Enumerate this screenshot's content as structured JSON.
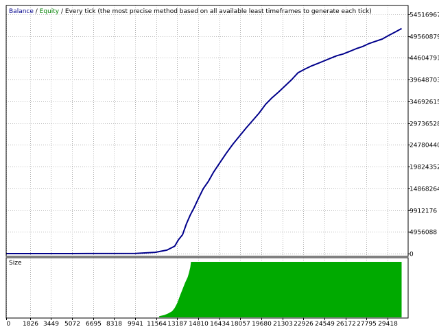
{
  "chart_data": {
    "type": "line",
    "title_parts": [
      {
        "text": "Balance",
        "color": "#00008b"
      },
      {
        "text": " / ",
        "color": "#000000"
      },
      {
        "text": "Equity",
        "color": "#008000"
      },
      {
        "text": " / Every tick (the most precise method based on all available least timeframes to generate each tick)",
        "color": "#000000"
      }
    ],
    "xlim": [
      0,
      31000
    ],
    "ylim": [
      0,
      54516967
    ],
    "y_ticks": [
      "54516967",
      "49560879",
      "44604791",
      "39648703",
      "34692615",
      "29736528",
      "24780440",
      "19824352",
      "14868264",
      "9912176",
      "4956088",
      "0"
    ],
    "y_tick_values": [
      54516967,
      49560879,
      44604791,
      39648703,
      34692615,
      29736528,
      24780440,
      19824352,
      14868264,
      9912176,
      4956088,
      0
    ],
    "x_ticks": [
      "0",
      "1826",
      "3449",
      "5072",
      "6695",
      "8318",
      "9941",
      "11564",
      "13187",
      "14810",
      "16434",
      "18057",
      "19680",
      "21303",
      "22926",
      "24549",
      "26172",
      "27795",
      "29418"
    ],
    "x_tick_values": [
      0,
      1826,
      3449,
      5072,
      6695,
      8318,
      9941,
      11564,
      13187,
      14810,
      16434,
      18057,
      19680,
      21303,
      22926,
      24549,
      26172,
      27795,
      29418
    ],
    "series": [
      {
        "name": "Balance",
        "color": "#00008b",
        "x": [
          0,
          5000,
          10000,
          11500,
          12400,
          13000,
          13300,
          13600,
          13900,
          14200,
          14500,
          14800,
          15200,
          15600,
          16000,
          16500,
          17000,
          17500,
          18000,
          18500,
          19000,
          19500,
          20000,
          20500,
          21000,
          21500,
          22000,
          22500,
          23000,
          23500,
          24000,
          24500,
          25000,
          25500,
          26000,
          26500,
          27000,
          27500,
          28000,
          28500,
          29000,
          29500,
          30000,
          30500
        ],
        "values": [
          0,
          0,
          50000,
          300000,
          800000,
          1700000,
          3200000,
          4300000,
          6800000,
          8800000,
          10500000,
          12400000,
          14800000,
          16500000,
          18600000,
          20800000,
          23000000,
          25000000,
          26800000,
          28600000,
          30300000,
          32000000,
          34000000,
          35500000,
          36800000,
          38200000,
          39600000,
          41200000,
          42000000,
          42700000,
          43300000,
          43900000,
          44500000,
          45100000,
          45500000,
          46100000,
          46700000,
          47200000,
          47900000,
          48400000,
          48900000,
          49700000,
          50500000,
          51300000
        ]
      }
    ],
    "size_panel": {
      "label": "Size",
      "color": "#00aa00",
      "x": [
        11800,
        12200,
        12500,
        12800,
        13000,
        13200,
        13400,
        13600,
        13800,
        14000,
        14100,
        14200,
        14250,
        30500
      ],
      "values": [
        0.01,
        0.03,
        0.06,
        0.1,
        0.16,
        0.25,
        0.38,
        0.5,
        0.62,
        0.72,
        0.8,
        0.9,
        1,
        1
      ]
    },
    "grid": true
  }
}
